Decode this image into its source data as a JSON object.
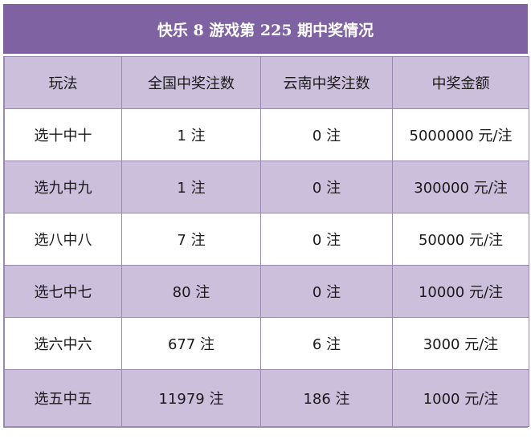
{
  "title": "快乐 8 游戏第 225 期中奖情况",
  "headers": [
    "玩法",
    "全国中奖注数",
    "云南中奖注数",
    "中奖金额"
  ],
  "rows": [
    [
      "选十中十",
      "1 注",
      "0 注",
      "5000000 元/注"
    ],
    [
      "选九中九",
      "1 注",
      "0 注",
      "300000 元/注"
    ],
    [
      "选八中八",
      "7 注",
      "0 注",
      "50000 元/注"
    ],
    [
      "选七中七",
      "80 注",
      "0 注",
      "10000 元/注"
    ],
    [
      "选六中六",
      "677 注",
      "6 注",
      "3000 元/注"
    ],
    [
      "选五中五",
      "11979 注",
      "186 注",
      "1000 元/注"
    ]
  ],
  "colors": {
    "title_bg": "#7e62a1",
    "shade_bg": "#cbbfdc",
    "border": "#9a8ab0"
  }
}
